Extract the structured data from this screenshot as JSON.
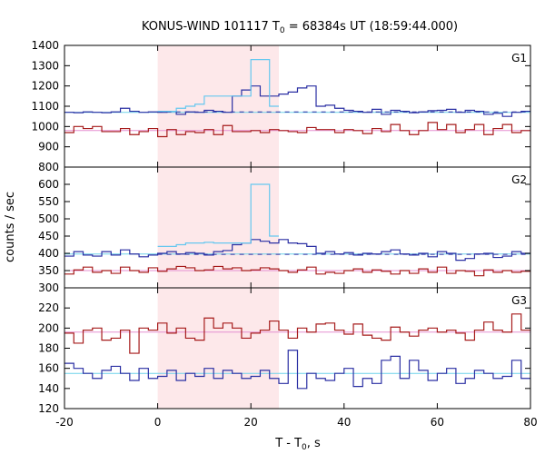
{
  "chart_data": {
    "type": "line",
    "title": {
      "prefix": "KONUS-WIND 101117 T",
      "sub": "0",
      "suffix": " = 68384s UT (18:59:44.000)"
    },
    "xlabel": {
      "prefix": "T - T",
      "sub": "0",
      "suffix": ", s"
    },
    "ylabel": "counts / sec",
    "xlim": [
      -20,
      80
    ],
    "x_ticks": [
      -20,
      0,
      20,
      40,
      60,
      80
    ],
    "highlight": {
      "x_start": 0,
      "x_end": 26,
      "color": "#fde8ea"
    },
    "colors": {
      "upper": "#2a2fa3",
      "fit_upper": "#6fd3ea",
      "lower": "#a61b1b",
      "fit_lower": "#e58fd1",
      "peak": "#66c7ef"
    },
    "panels": [
      {
        "label": "G1",
        "ylim": [
          800,
          1400
        ],
        "y_ticks": [
          800,
          900,
          1000,
          1100,
          1200,
          1300,
          1400
        ],
        "bin_start": -20,
        "bin_width": 2,
        "series": [
          {
            "role": "upper",
            "values": [
              1070,
              1068,
              1072,
              1070,
              1068,
              1072,
              1090,
              1075,
              1070,
              1072,
              1070,
              1075,
              1060,
              1072,
              1070,
              1080,
              1075,
              1070,
              1150,
              1180,
              1200,
              1150,
              1150,
              1160,
              1170,
              1190,
              1200,
              1100,
              1105,
              1090,
              1080,
              1075,
              1070,
              1085,
              1060,
              1080,
              1075,
              1068,
              1072,
              1078,
              1080,
              1085,
              1070,
              1080,
              1075,
              1060,
              1065,
              1050,
              1070,
              1075
            ],
            "dashed": {
              "x": [
                0,
                80
              ],
              "y": 1072
            },
            "fit": {
              "x": [
                -20,
                80
              ],
              "y": 1070
            }
          },
          {
            "role": "peak",
            "x_start": 0,
            "x_end": 26,
            "values": [
              1075,
              1075,
              1090,
              1100,
              1110,
              1150,
              1150,
              1150,
              1150,
              1150,
              1330,
              1330,
              1100
            ]
          },
          {
            "role": "lower",
            "values": [
              970,
              1000,
              990,
              1000,
              975,
              975,
              990,
              960,
              975,
              990,
              950,
              985,
              960,
              975,
              970,
              985,
              960,
              1005,
              975,
              975,
              980,
              970,
              985,
              980,
              975,
              970,
              995,
              985,
              985,
              970,
              985,
              980,
              965,
              990,
              975,
              1010,
              980,
              960,
              980,
              1020,
              985,
              1010,
              970,
              985,
              1010,
              960,
              990,
              1010,
              970,
              980
            ],
            "fit": {
              "x": [
                -20,
                80
              ],
              "y": 980
            }
          }
        ]
      },
      {
        "label": "G2",
        "ylim": [
          300,
          650
        ],
        "y_ticks": [
          300,
          350,
          400,
          450,
          500,
          550,
          600
        ],
        "bin_start": -20,
        "bin_width": 2,
        "series": [
          {
            "role": "upper",
            "values": [
              392,
              405,
              395,
              392,
              405,
              395,
              410,
              398,
              390,
              395,
              400,
              405,
              398,
              402,
              400,
              395,
              405,
              408,
              425,
              430,
              440,
              435,
              430,
              440,
              430,
              428,
              420,
              400,
              405,
              398,
              402,
              395,
              400,
              398,
              405,
              410,
              398,
              395,
              400,
              390,
              405,
              400,
              380,
              385,
              398,
              400,
              388,
              392,
              405,
              400
            ],
            "dashed": {
              "x": [
                0,
                80
              ],
              "y": 397
            },
            "fit": {
              "x": [
                -20,
                80
              ],
              "y": 398
            }
          },
          {
            "role": "peak",
            "x_start": 0,
            "x_end": 26,
            "values": [
              420,
              420,
              425,
              430,
              430,
              432,
              430,
              430,
              430,
              430,
              600,
              600,
              450
            ]
          },
          {
            "role": "lower",
            "values": [
              340,
              352,
              360,
              345,
              350,
              342,
              360,
              350,
              345,
              358,
              348,
              355,
              362,
              358,
              350,
              352,
              362,
              355,
              358,
              350,
              352,
              358,
              355,
              350,
              345,
              352,
              360,
              340,
              345,
              342,
              350,
              355,
              345,
              352,
              348,
              340,
              350,
              342,
              355,
              345,
              360,
              342,
              350,
              348,
              335,
              352,
              345,
              350,
              345,
              348
            ],
            "fit": {
              "x": [
                -20,
                80
              ],
              "y": 350
            }
          }
        ]
      },
      {
        "label": "G3",
        "ylim": [
          120,
          240
        ],
        "y_ticks": [
          120,
          140,
          160,
          180,
          200,
          220
        ],
        "bin_start": -20,
        "bin_width": 2,
        "series": [
          {
            "role": "lower",
            "values": [
              195,
              185,
              198,
              200,
              188,
              190,
              198,
              175,
              200,
              198,
              205,
              195,
              200,
              190,
              188,
              210,
              200,
              205,
              200,
              190,
              195,
              198,
              207,
              198,
              190,
              200,
              196,
              204,
              205,
              198,
              194,
              204,
              193,
              190,
              188,
              201,
              196,
              192,
              198,
              200,
              196,
              198,
              195,
              188,
              198,
              206,
              198,
              196,
              214,
              198
            ],
            "fit": {
              "x": [
                -20,
                80
              ],
              "y": 196
            }
          },
          {
            "role": "upper",
            "values": [
              165,
              160,
              155,
              150,
              158,
              162,
              155,
              148,
              160,
              150,
              152,
              158,
              148,
              155,
              152,
              160,
              150,
              158,
              155,
              150,
              152,
              158,
              150,
              145,
              178,
              140,
              155,
              150,
              148,
              155,
              160,
              142,
              150,
              145,
              168,
              172,
              150,
              168,
              158,
              148,
              155,
              160,
              145,
              150,
              158,
              155,
              150,
              152,
              168,
              150
            ],
            "fit": {
              "x": [
                -20,
                80
              ],
              "y": 155
            }
          }
        ]
      }
    ]
  }
}
